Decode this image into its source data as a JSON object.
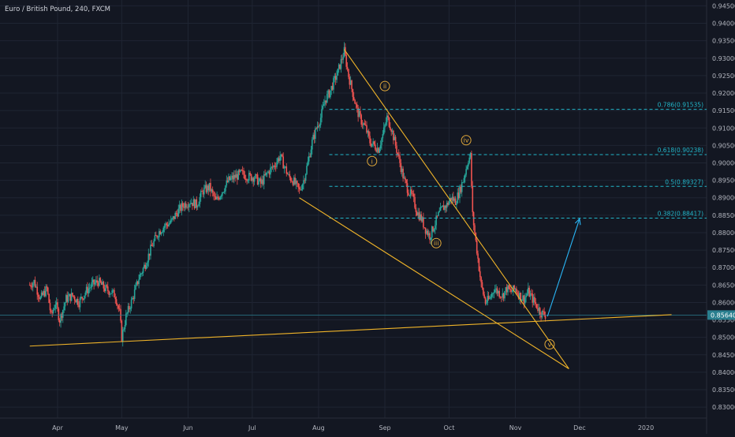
{
  "header": {
    "symbol_title": "Euro / British Pound, 240, FXCM"
  },
  "colors": {
    "background": "#131722",
    "grid": "#1f2533",
    "axis_text": "#b2b5be",
    "bull": "#26a69a",
    "bear": "#ef5350",
    "trendline": "#f0b429",
    "fib": "#22b5c8",
    "arrow": "#29b6f6",
    "wave_label": "#e0a83a",
    "price_tag": "#2a7f8f"
  },
  "chart_data": {
    "type": "candlestick",
    "title": "Euro / British Pound, 240, FXCM",
    "xlabel": "",
    "ylabel": "",
    "ylim": [
      0.828,
      0.946
    ],
    "y_ticks": [
      "0.83000",
      "0.83500",
      "0.84000",
      "0.84500",
      "0.85000",
      "0.85500",
      "0.86000",
      "0.86500",
      "0.87000",
      "0.87500",
      "0.88000",
      "0.88500",
      "0.89000",
      "0.89500",
      "0.90000",
      "0.90500",
      "0.91000",
      "0.91500",
      "0.92000",
      "0.92500",
      "0.93000",
      "0.93500",
      "0.94000",
      "0.94500"
    ],
    "x_ticks": [
      {
        "label": "Apr",
        "day": 13
      },
      {
        "label": "May",
        "day": 43
      },
      {
        "label": "Jun",
        "day": 74
      },
      {
        "label": "Jul",
        "day": 104
      },
      {
        "label": "Aug",
        "day": 135
      },
      {
        "label": "Sep",
        "day": 166
      },
      {
        "label": "Oct",
        "day": 196
      },
      {
        "label": "Nov",
        "day": 227
      },
      {
        "label": "Dec",
        "day": 257
      },
      {
        "label": "2020",
        "day": 288
      }
    ],
    "price_path": [
      [
        0,
        0.865
      ],
      [
        2,
        0.866
      ],
      [
        5,
        0.861
      ],
      [
        8,
        0.864
      ],
      [
        10,
        0.856
      ],
      [
        12,
        0.86
      ],
      [
        14,
        0.855
      ],
      [
        17,
        0.861
      ],
      [
        20,
        0.862
      ],
      [
        23,
        0.86
      ],
      [
        26,
        0.863
      ],
      [
        29,
        0.865
      ],
      [
        32,
        0.866
      ],
      [
        35,
        0.864
      ],
      [
        38,
        0.863
      ],
      [
        40,
        0.862
      ],
      [
        42,
        0.857
      ],
      [
        43,
        0.85
      ],
      [
        45,
        0.856
      ],
      [
        48,
        0.861
      ],
      [
        51,
        0.867
      ],
      [
        54,
        0.871
      ],
      [
        57,
        0.876
      ],
      [
        60,
        0.88
      ],
      [
        63,
        0.882
      ],
      [
        66,
        0.883
      ],
      [
        69,
        0.886
      ],
      [
        72,
        0.888
      ],
      [
        75,
        0.889
      ],
      [
        78,
        0.888
      ],
      [
        81,
        0.892
      ],
      [
        84,
        0.893
      ],
      [
        87,
        0.889
      ],
      [
        90,
        0.892
      ],
      [
        93,
        0.895
      ],
      [
        96,
        0.896
      ],
      [
        99,
        0.897
      ],
      [
        102,
        0.896
      ],
      [
        105,
        0.896
      ],
      [
        108,
        0.894
      ],
      [
        111,
        0.897
      ],
      [
        114,
        0.899
      ],
      [
        117,
        0.902
      ],
      [
        119,
        0.899
      ],
      [
        121,
        0.896
      ],
      [
        123,
        0.895
      ],
      [
        125,
        0.893
      ],
      [
        126,
        0.892
      ],
      [
        128,
        0.895
      ],
      [
        130,
        0.9
      ],
      [
        132,
        0.906
      ],
      [
        134,
        0.91
      ],
      [
        136,
        0.913
      ],
      [
        138,
        0.918
      ],
      [
        140,
        0.92
      ],
      [
        142,
        0.923
      ],
      [
        144,
        0.926
      ],
      [
        146,
        0.93
      ],
      [
        147,
        0.932
      ],
      [
        149,
        0.925
      ],
      [
        151,
        0.92
      ],
      [
        153,
        0.915
      ],
      [
        155,
        0.912
      ],
      [
        157,
        0.91
      ],
      [
        159,
        0.906
      ],
      [
        161,
        0.905
      ],
      [
        163,
        0.904
      ],
      [
        165,
        0.908
      ],
      [
        167,
        0.913
      ],
      [
        169,
        0.91
      ],
      [
        171,
        0.905
      ],
      [
        173,
        0.9
      ],
      [
        175,
        0.895
      ],
      [
        177,
        0.892
      ],
      [
        179,
        0.89
      ],
      [
        181,
        0.886
      ],
      [
        183,
        0.884
      ],
      [
        185,
        0.881
      ],
      [
        187,
        0.879
      ],
      [
        189,
        0.882
      ],
      [
        191,
        0.885
      ],
      [
        193,
        0.887
      ],
      [
        195,
        0.888
      ],
      [
        197,
        0.89
      ],
      [
        199,
        0.889
      ],
      [
        201,
        0.892
      ],
      [
        203,
        0.896
      ],
      [
        205,
        0.901
      ],
      [
        206,
        0.902
      ],
      [
        207,
        0.885
      ],
      [
        209,
        0.875
      ],
      [
        211,
        0.865
      ],
      [
        213,
        0.86
      ],
      [
        215,
        0.861
      ],
      [
        217,
        0.864
      ],
      [
        219,
        0.863
      ],
      [
        221,
        0.862
      ],
      [
        223,
        0.864
      ],
      [
        225,
        0.863
      ],
      [
        227,
        0.864
      ],
      [
        229,
        0.862
      ],
      [
        231,
        0.861
      ],
      [
        233,
        0.863
      ],
      [
        235,
        0.861
      ],
      [
        237,
        0.859
      ],
      [
        239,
        0.857
      ],
      [
        241,
        0.8564
      ]
    ],
    "trendlines": [
      {
        "name": "upper-channel-line",
        "from": [
          147,
          0.9325
        ],
        "to": [
          252,
          0.841
        ]
      },
      {
        "name": "lower-channel-line",
        "from": [
          126,
          0.89
        ],
        "to": [
          252,
          0.841
        ]
      },
      {
        "name": "base-support-line",
        "from": [
          0,
          0.8475
        ],
        "to": [
          300,
          0.8565
        ]
      }
    ],
    "fib_levels": [
      {
        "label": "0.786(0.91535)",
        "value": 0.91535
      },
      {
        "label": "0.618(0.90238)",
        "value": 0.90238
      },
      {
        "label": "0.5(0.89327)",
        "value": 0.89327
      },
      {
        "label": "0.382(0.88417)",
        "value": 0.88417
      }
    ],
    "fib_start_day": 140,
    "wave_labels": [
      {
        "label": "i",
        "day": 160,
        "price": 0.9005
      },
      {
        "label": "ii",
        "day": 166,
        "price": 0.922
      },
      {
        "label": "iii",
        "day": 190,
        "price": 0.877
      },
      {
        "label": "iv",
        "day": 204,
        "price": 0.9065
      },
      {
        "label": "v",
        "day": 243,
        "price": 0.848
      }
    ],
    "projection_arrow": {
      "from": [
        242,
        0.856
      ],
      "to": [
        257,
        0.884
      ]
    },
    "last_price": 0.8564,
    "last_price_label": "0.85640"
  }
}
